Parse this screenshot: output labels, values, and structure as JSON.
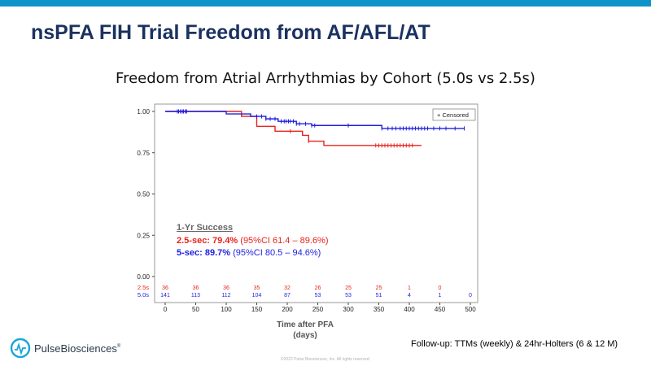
{
  "slide": {
    "title": "nsPFA FIH Trial Freedom from AF/AFL/AT",
    "footnote": "Follow-up: TTMs (weekly) & 24hr-Holters (6 & 12 M)",
    "copyright": "©2022 Pulse Biosciences, Inc. All rights reserved.",
    "logo_text": "PulseBiosciences",
    "logo_mark": "®",
    "colors": {
      "top_bar": "#0e93c8",
      "title": "#1b3260"
    }
  },
  "chart_data": {
    "type": "line",
    "title": "Freedom from Atrial Arrhythmias by Cohort (5.0s vs 2.5s)",
    "xlabel": "Time after PFA\n(days)",
    "ylabel": "",
    "xlim": [
      -30,
      500
    ],
    "ylim": [
      0,
      1
    ],
    "x_ticks": [
      0,
      50,
      100,
      150,
      200,
      250,
      300,
      350,
      400,
      450,
      500
    ],
    "y_ticks": [
      "0.00",
      "0.25",
      "0.50",
      "0.75",
      "1.00"
    ],
    "legend": {
      "label": "+ Censored",
      "position": "top-right"
    },
    "grid": false,
    "series": [
      {
        "name": "2.5s",
        "color": "#e8231e",
        "steps": [
          [
            0,
            1.0
          ],
          [
            125,
            0.97
          ],
          [
            150,
            0.91
          ],
          [
            180,
            0.88
          ],
          [
            200,
            0.88
          ],
          [
            225,
            0.855
          ],
          [
            235,
            0.82
          ],
          [
            245,
            0.82
          ],
          [
            260,
            0.794
          ],
          [
            420,
            0.794
          ]
        ],
        "censored": [
          25,
          30,
          35,
          205,
          235,
          345,
          350,
          355,
          360,
          365,
          370,
          375,
          380,
          385,
          390,
          395,
          400,
          405
        ]
      },
      {
        "name": "5.0s",
        "color": "#1f1fe0",
        "steps": [
          [
            0,
            1.0
          ],
          [
            100,
            0.985
          ],
          [
            140,
            0.97
          ],
          [
            165,
            0.955
          ],
          [
            185,
            0.94
          ],
          [
            215,
            0.925
          ],
          [
            240,
            0.915
          ],
          [
            355,
            0.897
          ],
          [
            490,
            0.897
          ]
        ],
        "censored": [
          20,
          22,
          25,
          28,
          30,
          33,
          35,
          150,
          158,
          165,
          172,
          180,
          190,
          195,
          198,
          202,
          205,
          210,
          215,
          220,
          230,
          240,
          245,
          300,
          355,
          365,
          372,
          378,
          385,
          390,
          395,
          400,
          405,
          410,
          415,
          420,
          425,
          430,
          440,
          450,
          460,
          475,
          490
        ]
      }
    ],
    "annotation": {
      "heading": "1-Yr Success",
      "lines": [
        {
          "bold": "2.5-sec: 79.4%",
          "rest": " (95%CI 61.4 – 89.6%)",
          "color": "#e8231e"
        },
        {
          "bold": "5-sec: 89.7%",
          "rest": " (95%CI 80.5 – 94.6%)",
          "color": "#1f1fe0"
        }
      ]
    },
    "risk_table": {
      "times": [
        0,
        50,
        100,
        150,
        200,
        250,
        300,
        350,
        400,
        450,
        500
      ],
      "rows": [
        {
          "label": "2.5s",
          "color": "#e8231e",
          "values": [
            "36",
            "36",
            "36",
            "35",
            "32",
            "26",
            "25",
            "25",
            "1",
            "0",
            ""
          ]
        },
        {
          "label": "5.0s",
          "color": "#1f1fe0",
          "values": [
            "141",
            "113",
            "112",
            "104",
            "87",
            "53",
            "53",
            "51",
            "4",
            "1",
            "0"
          ]
        }
      ]
    }
  }
}
